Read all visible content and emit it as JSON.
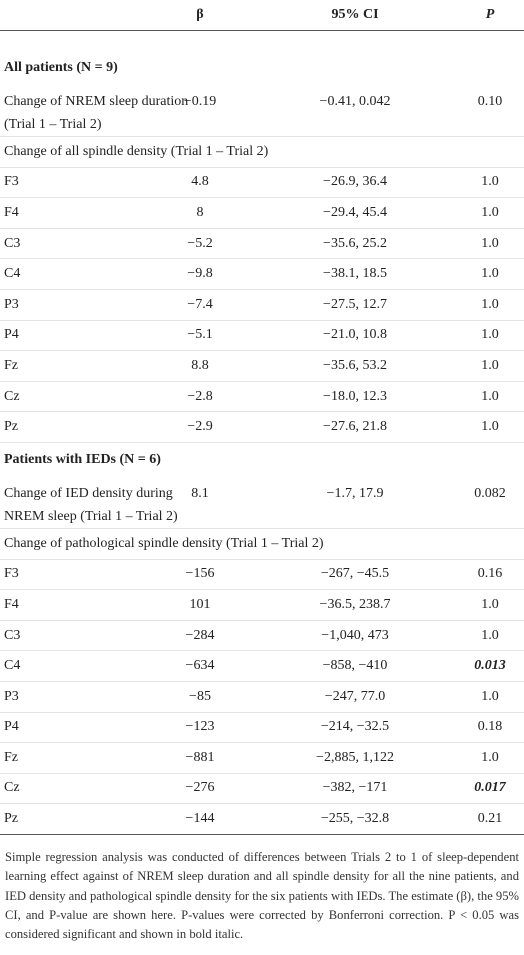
{
  "header": {
    "beta": "β",
    "ci": "95% CI",
    "p": "P"
  },
  "rows": [
    {
      "kind": "section",
      "label": "All patients (N = 9)"
    },
    {
      "kind": "data",
      "label": [
        "Change of NREM sleep duration",
        "(Trial 1 – Trial 2)"
      ],
      "beta": "−0.19",
      "ci": "−0.41, 0.042",
      "p": "0.10"
    },
    {
      "kind": "sub",
      "label": "Change of all spindle density (Trial 1 – Trial 2)"
    },
    {
      "kind": "data",
      "label": "F3",
      "beta": "4.8",
      "ci": "−26.9, 36.4",
      "p": "1.0"
    },
    {
      "kind": "data",
      "label": "F4",
      "beta": "8",
      "ci": "−29.4, 45.4",
      "p": "1.0"
    },
    {
      "kind": "data",
      "label": "C3",
      "beta": "−5.2",
      "ci": "−35.6, 25.2",
      "p": "1.0"
    },
    {
      "kind": "data",
      "label": "C4",
      "beta": "−9.8",
      "ci": "−38.1, 18.5",
      "p": "1.0"
    },
    {
      "kind": "data",
      "label": "P3",
      "beta": "−7.4",
      "ci": "−27.5, 12.7",
      "p": "1.0"
    },
    {
      "kind": "data",
      "label": "P4",
      "beta": "−5.1",
      "ci": "−21.0, 10.8",
      "p": "1.0"
    },
    {
      "kind": "data",
      "label": "Fz",
      "beta": "8.8",
      "ci": "−35.6, 53.2",
      "p": "1.0"
    },
    {
      "kind": "data",
      "label": "Cz",
      "beta": "−2.8",
      "ci": "−18.0, 12.3",
      "p": "1.0"
    },
    {
      "kind": "data",
      "label": "Pz",
      "beta": "−2.9",
      "ci": "−27.6, 21.8",
      "p": "1.0"
    },
    {
      "kind": "section",
      "label": "Patients with IEDs (N = 6)"
    },
    {
      "kind": "data",
      "label": [
        "Change of IED density during",
        "NREM sleep (Trial 1 – Trial 2)"
      ],
      "beta": "8.1",
      "ci": "−1.7, 17.9",
      "p": "0.082"
    },
    {
      "kind": "sub",
      "label": "Change of pathological spindle density (Trial 1 – Trial 2)"
    },
    {
      "kind": "data",
      "label": "F3",
      "beta": "−156",
      "ci": "−267, −45.5",
      "p": "0.16"
    },
    {
      "kind": "data",
      "label": "F4",
      "beta": "101",
      "ci": "−36.5, 238.7",
      "p": "1.0"
    },
    {
      "kind": "data",
      "label": "C3",
      "beta": "−284",
      "ci": "−1,040, 473",
      "p": "1.0"
    },
    {
      "kind": "data",
      "label": "C4",
      "beta": "−634",
      "ci": "−858, −410",
      "p": "0.013",
      "bold_italic": true
    },
    {
      "kind": "data",
      "label": "P3",
      "beta": "−85",
      "ci": "−247, 77.0",
      "p": "1.0"
    },
    {
      "kind": "data",
      "label": "P4",
      "beta": "−123",
      "ci": "−214, −32.5",
      "p": "0.18"
    },
    {
      "kind": "data",
      "label": "Fz",
      "beta": "−881",
      "ci": "−2,885, 1,122",
      "p": "1.0"
    },
    {
      "kind": "data",
      "label": "Cz",
      "beta": "−276",
      "ci": "−382, −171",
      "p": "0.017",
      "bold_italic": true
    },
    {
      "kind": "data",
      "label": "Pz",
      "beta": "−144",
      "ci": "−255, −32.8",
      "p": "0.21"
    }
  ],
  "footnote": "Simple regression analysis was conducted of differences between Trials 2 to 1 of sleep-dependent learning effect against of NREM sleep duration and all spindle density for all the nine patients, and IED density and pathological spindle density for the six patients with IEDs. The estimate (β), the 95% CI, and P-value are shown here. P-values were corrected by Bonferroni correction. P < 0.05 was considered significant and shown in bold italic."
}
